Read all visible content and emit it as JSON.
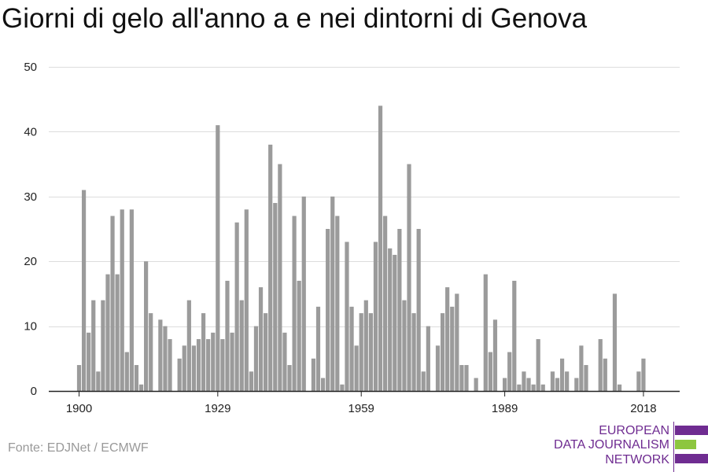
{
  "title": "Giorni di gelo all'anno a e nei dintorni di Genova",
  "source": "Fonte: EDJNet / ECMWF",
  "logo": {
    "line1": "EUROPEAN",
    "line2": "DATA JOURNALISM",
    "line3": "NETWORK",
    "colors": {
      "primary": "#6f2c91",
      "accent": "#8dc63f"
    }
  },
  "colors": {
    "bar": "#9b9b9b",
    "grid": "#dddddd",
    "axis": "#222222",
    "text": "#222222"
  },
  "chart_data": {
    "type": "bar",
    "title": "Giorni di gelo all'anno a e nei dintorni di Genova",
    "xlabel": "",
    "ylabel": "",
    "ylim": [
      0,
      50
    ],
    "yticks": [
      0,
      10,
      20,
      30,
      40,
      50
    ],
    "xticks": [
      1900,
      1929,
      1959,
      1989,
      2018
    ],
    "grid": true,
    "x": [
      1900,
      1901,
      1902,
      1903,
      1904,
      1905,
      1906,
      1907,
      1908,
      1909,
      1910,
      1911,
      1912,
      1913,
      1914,
      1915,
      1916,
      1917,
      1918,
      1919,
      1920,
      1921,
      1922,
      1923,
      1924,
      1925,
      1926,
      1927,
      1928,
      1929,
      1930,
      1931,
      1932,
      1933,
      1934,
      1935,
      1936,
      1937,
      1938,
      1939,
      1940,
      1941,
      1942,
      1943,
      1944,
      1945,
      1946,
      1947,
      1948,
      1949,
      1950,
      1951,
      1952,
      1953,
      1954,
      1955,
      1956,
      1957,
      1958,
      1959,
      1960,
      1961,
      1962,
      1963,
      1964,
      1965,
      1966,
      1967,
      1968,
      1969,
      1970,
      1971,
      1972,
      1973,
      1974,
      1975,
      1976,
      1977,
      1978,
      1979,
      1980,
      1981,
      1982,
      1983,
      1984,
      1985,
      1986,
      1987,
      1988,
      1989,
      1990,
      1991,
      1992,
      1993,
      1994,
      1995,
      1996,
      1997,
      1998,
      1999,
      2000,
      2001,
      2002,
      2003,
      2004,
      2005,
      2006,
      2007,
      2008,
      2009,
      2010,
      2011,
      2012,
      2013,
      2014,
      2015,
      2016,
      2017,
      2018,
      2019,
      2020
    ],
    "values": [
      4,
      31,
      9,
      14,
      3,
      14,
      18,
      27,
      18,
      28,
      6,
      28,
      4,
      1,
      20,
      12,
      0,
      11,
      10,
      8,
      0,
      5,
      7,
      14,
      7,
      8,
      12,
      8,
      9,
      41,
      8,
      17,
      9,
      26,
      14,
      28,
      3,
      10,
      16,
      12,
      38,
      29,
      35,
      9,
      4,
      27,
      17,
      30,
      0,
      5,
      13,
      2,
      25,
      30,
      27,
      1,
      23,
      13,
      7,
      12,
      14,
      12,
      23,
      44,
      27,
      22,
      21,
      25,
      14,
      35,
      12,
      25,
      3,
      10,
      0,
      7,
      12,
      16,
      13,
      15,
      4,
      4,
      0,
      2,
      0,
      18,
      6,
      11,
      0,
      2,
      6,
      17,
      1,
      3,
      2,
      1,
      8,
      1,
      0,
      3,
      2,
      5,
      3,
      0,
      2,
      7,
      4,
      0,
      0,
      8,
      5,
      0,
      15,
      1,
      0,
      0,
      0,
      3,
      5,
      0,
      0
    ]
  }
}
